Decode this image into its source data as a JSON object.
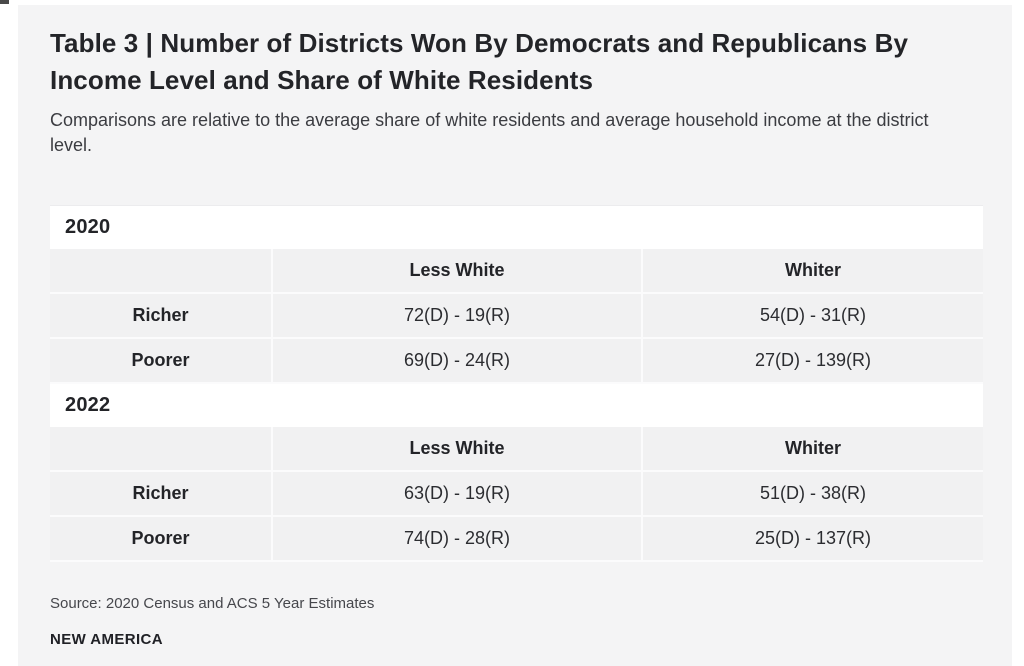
{
  "page": {
    "title": "Table 3 | Number of Districts Won By Democrats and Republicans By Income Level and Share of White Residents",
    "subtitle": "Comparisons are relative to the average share of white residents and average household income at the district level.",
    "source": "Source: 2020 Census and ACS 5 Year Estimates",
    "brand": "NEW AMERICA"
  },
  "colors": {
    "page_background": "#f4f4f5",
    "outer_background": "#ffffff",
    "year_row_background": "#ffffff",
    "cell_background": "#f1f1f2",
    "cell_divider": "#fbfbfc",
    "title_text": "#232428",
    "body_text": "#2b2c30"
  },
  "table": {
    "sections": [
      {
        "year": "2020",
        "columns": [
          "Less White",
          "Whiter"
        ],
        "rows": [
          {
            "label": "Richer",
            "values": [
              "72(D) - 19(R)",
              "54(D) - 31(R)"
            ]
          },
          {
            "label": "Poorer",
            "values": [
              "69(D) - 24(R)",
              "27(D) - 139(R)"
            ]
          }
        ]
      },
      {
        "year": "2022",
        "columns": [
          "Less White",
          "Whiter"
        ],
        "rows": [
          {
            "label": "Richer",
            "values": [
              "63(D) - 19(R)",
              "51(D) - 38(R)"
            ]
          },
          {
            "label": "Poorer",
            "values": [
              "74(D) - 28(R)",
              "25(D) - 137(R)"
            ]
          }
        ]
      }
    ]
  },
  "chart_data": [
    {
      "type": "table",
      "title": "2020",
      "columns": [
        "",
        "Less White",
        "Whiter"
      ],
      "rows": [
        [
          "Richer",
          "72(D) - 19(R)",
          "54(D) - 31(R)"
        ],
        [
          "Poorer",
          "69(D) - 24(R)",
          "27(D) - 139(R)"
        ]
      ],
      "cells_numeric": {
        "Richer": {
          "Less White": {
            "D": 72,
            "R": 19
          },
          "Whiter": {
            "D": 54,
            "R": 31
          }
        },
        "Poorer": {
          "Less White": {
            "D": 69,
            "R": 24
          },
          "Whiter": {
            "D": 27,
            "R": 139
          }
        }
      }
    },
    {
      "type": "table",
      "title": "2022",
      "columns": [
        "",
        "Less White",
        "Whiter"
      ],
      "rows": [
        [
          "Richer",
          "63(D) - 19(R)",
          "51(D) - 38(R)"
        ],
        [
          "Poorer",
          "74(D) - 28(R)",
          "25(D) - 137(R)"
        ]
      ],
      "cells_numeric": {
        "Richer": {
          "Less White": {
            "D": 63,
            "R": 19
          },
          "Whiter": {
            "D": 51,
            "R": 38
          }
        },
        "Poorer": {
          "Less White": {
            "D": 74,
            "R": 28
          },
          "Whiter": {
            "D": 25,
            "R": 137
          }
        }
      }
    }
  ]
}
